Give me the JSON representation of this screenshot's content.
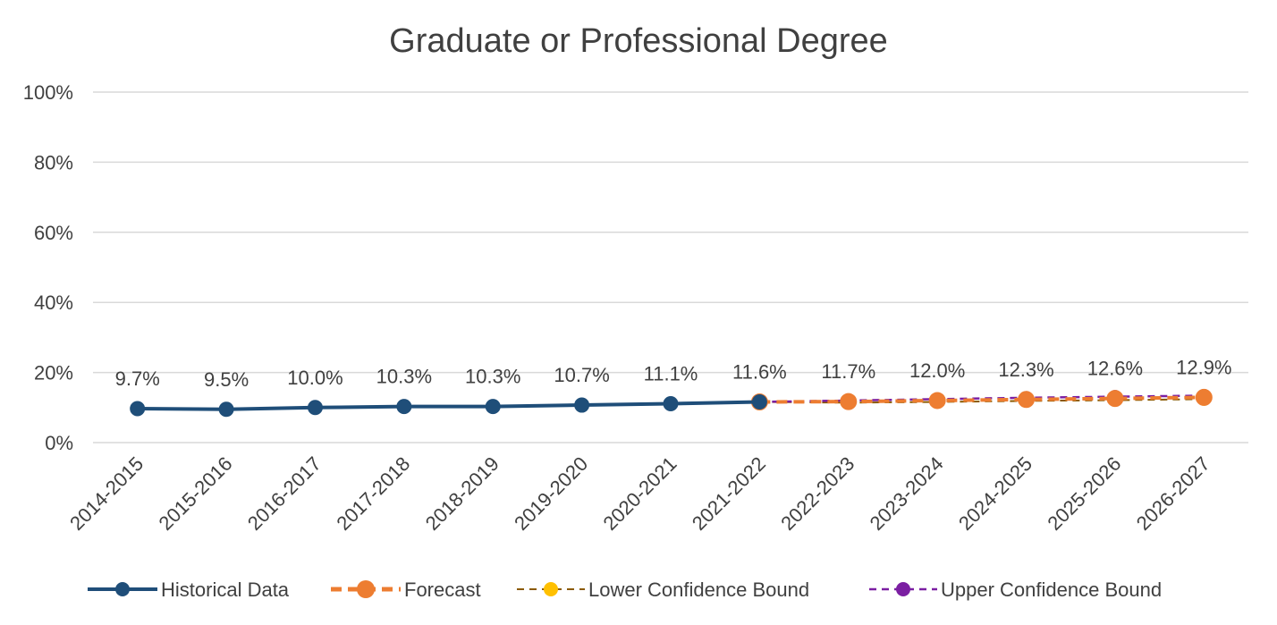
{
  "chart_data": {
    "type": "line",
    "title": "Graduate or Professional Degree",
    "xlabel": "",
    "ylabel": "",
    "ylim": [
      0,
      100
    ],
    "yticks": [
      "0%",
      "20%",
      "40%",
      "60%",
      "80%",
      "100%"
    ],
    "grid": true,
    "legend_position": "bottom",
    "categories": [
      "2014-2015",
      "2015-2016",
      "2016-2017",
      "2017-2018",
      "2018-2019",
      "2019-2020",
      "2020-2021",
      "2021-2022",
      "2022-2023",
      "2023-2024",
      "2024-2025",
      "2025-2026",
      "2026-2027"
    ],
    "data_labels": [
      "9.7%",
      "9.5%",
      "10.0%",
      "10.3%",
      "10.3%",
      "10.7%",
      "11.1%",
      "11.6%",
      "11.7%",
      "12.0%",
      "12.3%",
      "12.6%",
      "12.9%"
    ],
    "series": [
      {
        "name": "Historical Data",
        "color": "#1f4e79",
        "style": "solid-marker",
        "values": [
          9.7,
          9.5,
          10.0,
          10.3,
          10.3,
          10.7,
          11.1,
          11.6,
          null,
          null,
          null,
          null,
          null
        ]
      },
      {
        "name": "Forecast",
        "color": "#ed7d31",
        "style": "solid-marker",
        "values": [
          null,
          null,
          null,
          null,
          null,
          null,
          null,
          11.6,
          11.7,
          12.0,
          12.3,
          12.6,
          12.9
        ]
      },
      {
        "name": "Lower Confidence Bound",
        "color": "#ffc000",
        "line_color": "#8a5a00",
        "style": "dashed-marker",
        "values": [
          null,
          null,
          null,
          null,
          null,
          null,
          null,
          11.6,
          11.4,
          11.6,
          11.9,
          12.1,
          12.4
        ]
      },
      {
        "name": "Upper Confidence Bound",
        "color": "#7b1fa2",
        "line_color": "#7b1fa2",
        "style": "dashed-marker",
        "values": [
          null,
          null,
          null,
          null,
          null,
          null,
          null,
          11.6,
          12.0,
          12.4,
          12.8,
          13.1,
          13.4
        ]
      }
    ]
  }
}
